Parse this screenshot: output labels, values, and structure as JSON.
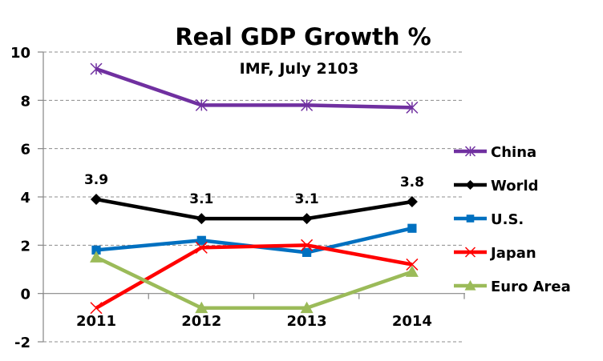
{
  "chart_data": {
    "type": "line",
    "title": "Real GDP Growth %",
    "subtitle": "IMF, July 2103",
    "xlabel": "",
    "ylabel": "",
    "categories": [
      "2011",
      "2012",
      "2013",
      "2014"
    ],
    "ylim": [
      -2,
      10
    ],
    "yticks": [
      10,
      8,
      6,
      4,
      2,
      0,
      -2
    ],
    "grid": true,
    "legend_position": "right",
    "series": [
      {
        "name": "China",
        "color": "#7030A0",
        "marker": "asterisk",
        "values": [
          9.3,
          7.8,
          7.8,
          7.7
        ],
        "show_labels": false
      },
      {
        "name": "World",
        "color": "#000000",
        "marker": "diamond",
        "values": [
          3.9,
          3.1,
          3.1,
          3.8
        ],
        "show_labels": true,
        "labels": [
          "3.9",
          "3.1",
          "3.1",
          "3.8"
        ]
      },
      {
        "name": "U.S.",
        "color": "#0070C0",
        "marker": "square",
        "values": [
          1.8,
          2.2,
          1.7,
          2.7
        ],
        "show_labels": false
      },
      {
        "name": "Japan",
        "color": "#FF0000",
        "marker": "x",
        "values": [
          -0.6,
          1.9,
          2.0,
          1.2
        ],
        "show_labels": false
      },
      {
        "name": "Euro Area",
        "color": "#9BBB59",
        "marker": "triangle",
        "values": [
          1.5,
          -0.6,
          -0.6,
          0.9
        ],
        "show_labels": false
      }
    ]
  }
}
